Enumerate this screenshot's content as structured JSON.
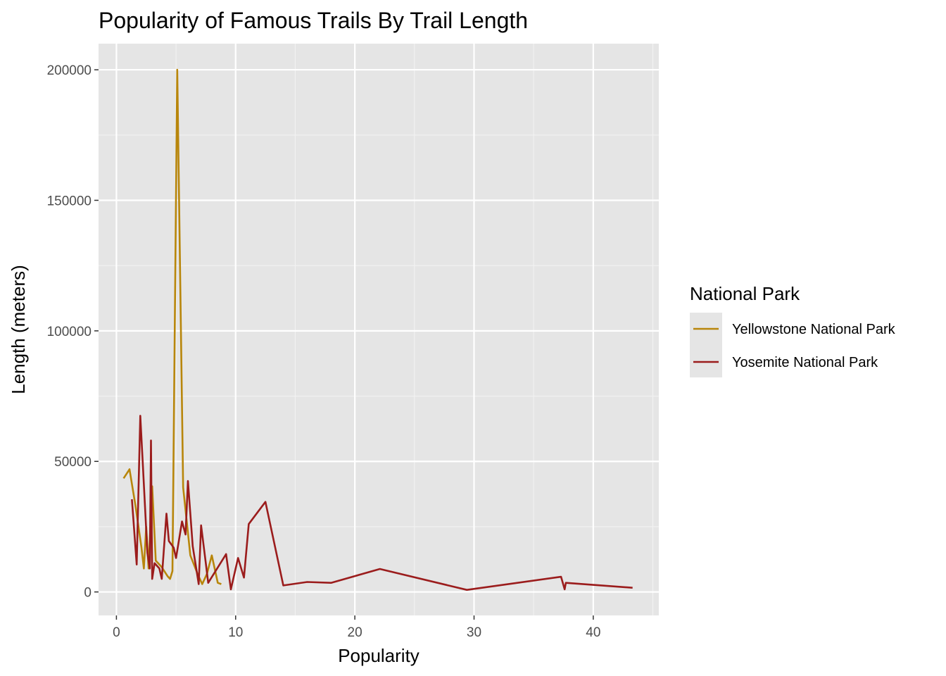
{
  "chart_data": {
    "type": "line",
    "title": "Popularity of Famous Trails By Trail Length",
    "xlabel": "Popularity",
    "ylabel": "Length (meters)",
    "xlim": [
      -1.5,
      45.5
    ],
    "ylim": [
      -9000,
      210000
    ],
    "x_ticks": [
      0,
      10,
      20,
      30,
      40
    ],
    "y_ticks": [
      0,
      50000,
      100000,
      150000,
      200000
    ],
    "x_tick_labels": [
      "0",
      "10",
      "20",
      "30",
      "40"
    ],
    "y_tick_labels": [
      "0",
      "50000",
      "100000",
      "150000",
      "200000"
    ],
    "grid": true,
    "legend": {
      "title": "National Park",
      "position": "right"
    },
    "series": [
      {
        "name": "Yellowstone National Park",
        "color": "#B8860B",
        "points": [
          [
            0.6,
            43500
          ],
          [
            1.1,
            47000
          ],
          [
            1.6,
            33000
          ],
          [
            2.1,
            17000
          ],
          [
            2.3,
            9000
          ],
          [
            2.5,
            25000
          ],
          [
            2.7,
            9000
          ],
          [
            3.0,
            40500
          ],
          [
            3.3,
            12000
          ],
          [
            3.8,
            9500
          ],
          [
            4.3,
            6000
          ],
          [
            4.5,
            5000
          ],
          [
            4.7,
            8000
          ],
          [
            5.1,
            200000
          ],
          [
            5.6,
            40000
          ],
          [
            6.2,
            14000
          ],
          [
            6.8,
            7000
          ],
          [
            7.2,
            3000
          ],
          [
            7.6,
            7000
          ],
          [
            8.0,
            14000
          ],
          [
            8.5,
            3500
          ],
          [
            8.8,
            3000
          ]
        ]
      },
      {
        "name": "Yosemite National Park",
        "color": "#9B1C1C",
        "points": [
          [
            1.3,
            35500
          ],
          [
            1.7,
            10500
          ],
          [
            2.0,
            67500
          ],
          [
            2.2,
            50000
          ],
          [
            2.6,
            15000
          ],
          [
            2.8,
            9000
          ],
          [
            2.9,
            58000
          ],
          [
            3.0,
            5000
          ],
          [
            3.2,
            11000
          ],
          [
            3.6,
            9000
          ],
          [
            3.8,
            5000
          ],
          [
            4.2,
            30000
          ],
          [
            4.4,
            19500
          ],
          [
            4.8,
            17000
          ],
          [
            5.0,
            13000
          ],
          [
            5.5,
            27000
          ],
          [
            5.8,
            22000
          ],
          [
            6.0,
            42500
          ],
          [
            6.4,
            17500
          ],
          [
            6.9,
            3000
          ],
          [
            7.1,
            25500
          ],
          [
            7.5,
            11000
          ],
          [
            7.7,
            3500
          ],
          [
            9.2,
            14500
          ],
          [
            9.6,
            1000
          ],
          [
            10.2,
            13000
          ],
          [
            10.7,
            5500
          ],
          [
            11.1,
            26000
          ],
          [
            12.5,
            34500
          ],
          [
            14.0,
            2500
          ],
          [
            16.0,
            3800
          ],
          [
            18.0,
            3500
          ],
          [
            22.1,
            8800
          ],
          [
            29.4,
            800
          ],
          [
            37.3,
            5800
          ],
          [
            37.6,
            1000
          ],
          [
            37.7,
            3500
          ],
          [
            43.3,
            1600
          ]
        ]
      }
    ]
  }
}
